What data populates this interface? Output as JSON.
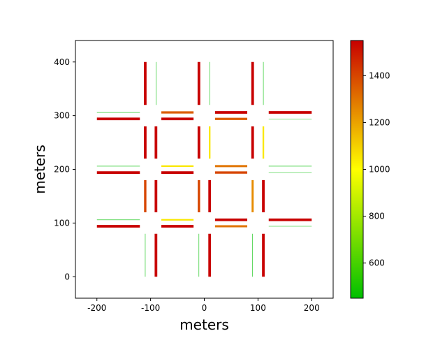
{
  "chart_data": {
    "type": "line",
    "title": "",
    "xlabel": "meters",
    "ylabel": "meters",
    "xlim": [
      -240,
      240
    ],
    "ylim": [
      -40,
      440
    ],
    "xticks": [
      -200,
      -100,
      0,
      100,
      200
    ],
    "yticks": [
      0,
      100,
      200,
      300,
      400
    ],
    "grid": false,
    "colorbar": {
      "range": [
        450,
        1550
      ],
      "ticks": [
        600,
        800,
        1000,
        1200,
        1400
      ],
      "colors": [
        "#00c000",
        "#ffff00",
        "#c80000"
      ]
    },
    "segments": [
      {
        "x": [
          -110,
          -110
        ],
        "y": [
          320,
          400
        ],
        "v": 1550
      },
      {
        "x": [
          -90,
          -90
        ],
        "y": [
          320,
          400
        ],
        "v": 450
      },
      {
        "x": [
          -10,
          -10
        ],
        "y": [
          320,
          400
        ],
        "v": 1550
      },
      {
        "x": [
          10,
          10
        ],
        "y": [
          320,
          400
        ],
        "v": 450
      },
      {
        "x": [
          90,
          90
        ],
        "y": [
          320,
          400
        ],
        "v": 1550
      },
      {
        "x": [
          110,
          110
        ],
        "y": [
          320,
          400
        ],
        "v": 450
      },
      {
        "x": [
          -200,
          -120
        ],
        "y": [
          306,
          306
        ],
        "v": 450
      },
      {
        "x": [
          -200,
          -120
        ],
        "y": [
          294,
          294
        ],
        "v": 1550
      },
      {
        "x": [
          -80,
          -20
        ],
        "y": [
          306,
          306
        ],
        "v": 1350
      },
      {
        "x": [
          -80,
          -20
        ],
        "y": [
          294,
          294
        ],
        "v": 1550
      },
      {
        "x": [
          20,
          80
        ],
        "y": [
          306,
          306
        ],
        "v": 1550
      },
      {
        "x": [
          20,
          80
        ],
        "y": [
          294,
          294
        ],
        "v": 1350
      },
      {
        "x": [
          120,
          200
        ],
        "y": [
          306,
          306
        ],
        "v": 1550
      },
      {
        "x": [
          120,
          200
        ],
        "y": [
          294,
          294
        ],
        "v": 450
      },
      {
        "x": [
          -110,
          -110
        ],
        "y": [
          220,
          280
        ],
        "v": 1550
      },
      {
        "x": [
          -90,
          -90
        ],
        "y": [
          220,
          280
        ],
        "v": 1550
      },
      {
        "x": [
          -10,
          -10
        ],
        "y": [
          220,
          280
        ],
        "v": 1550
      },
      {
        "x": [
          10,
          10
        ],
        "y": [
          220,
          280
        ],
        "v": 1050
      },
      {
        "x": [
          90,
          90
        ],
        "y": [
          220,
          280
        ],
        "v": 1550
      },
      {
        "x": [
          110,
          110
        ],
        "y": [
          220,
          280
        ],
        "v": 1050
      },
      {
        "x": [
          -200,
          -120
        ],
        "y": [
          206,
          206
        ],
        "v": 450
      },
      {
        "x": [
          -200,
          -120
        ],
        "y": [
          194,
          194
        ],
        "v": 1550
      },
      {
        "x": [
          -80,
          -20
        ],
        "y": [
          206,
          206
        ],
        "v": 1050
      },
      {
        "x": [
          -80,
          -20
        ],
        "y": [
          194,
          194
        ],
        "v": 1550
      },
      {
        "x": [
          20,
          80
        ],
        "y": [
          206,
          206
        ],
        "v": 1300
      },
      {
        "x": [
          20,
          80
        ],
        "y": [
          194,
          194
        ],
        "v": 1400
      },
      {
        "x": [
          120,
          200
        ],
        "y": [
          206,
          206
        ],
        "v": 450
      },
      {
        "x": [
          120,
          200
        ],
        "y": [
          194,
          194
        ],
        "v": 450
      },
      {
        "x": [
          -110,
          -110
        ],
        "y": [
          120,
          180
        ],
        "v": 1400
      },
      {
        "x": [
          -90,
          -90
        ],
        "y": [
          120,
          180
        ],
        "v": 1550
      },
      {
        "x": [
          -10,
          -10
        ],
        "y": [
          120,
          180
        ],
        "v": 1400
      },
      {
        "x": [
          10,
          10
        ],
        "y": [
          120,
          180
        ],
        "v": 1550
      },
      {
        "x": [
          90,
          90
        ],
        "y": [
          120,
          180
        ],
        "v": 1250
      },
      {
        "x": [
          110,
          110
        ],
        "y": [
          120,
          180
        ],
        "v": 1550
      },
      {
        "x": [
          -200,
          -120
        ],
        "y": [
          106,
          106
        ],
        "v": 450
      },
      {
        "x": [
          -200,
          -120
        ],
        "y": [
          94,
          94
        ],
        "v": 1550
      },
      {
        "x": [
          -80,
          -20
        ],
        "y": [
          106,
          106
        ],
        "v": 1050
      },
      {
        "x": [
          -80,
          -20
        ],
        "y": [
          94,
          94
        ],
        "v": 1550
      },
      {
        "x": [
          20,
          80
        ],
        "y": [
          106,
          106
        ],
        "v": 1550
      },
      {
        "x": [
          20,
          80
        ],
        "y": [
          94,
          94
        ],
        "v": 1300
      },
      {
        "x": [
          120,
          200
        ],
        "y": [
          106,
          106
        ],
        "v": 1550
      },
      {
        "x": [
          120,
          200
        ],
        "y": [
          94,
          94
        ],
        "v": 450
      },
      {
        "x": [
          -110,
          -110
        ],
        "y": [
          0,
          80
        ],
        "v": 450
      },
      {
        "x": [
          -90,
          -90
        ],
        "y": [
          0,
          80
        ],
        "v": 1550
      },
      {
        "x": [
          -10,
          -10
        ],
        "y": [
          0,
          80
        ],
        "v": 450
      },
      {
        "x": [
          10,
          10
        ],
        "y": [
          0,
          80
        ],
        "v": 1550
      },
      {
        "x": [
          90,
          90
        ],
        "y": [
          0,
          80
        ],
        "v": 450
      },
      {
        "x": [
          110,
          110
        ],
        "y": [
          0,
          80
        ],
        "v": 1550
      }
    ]
  }
}
